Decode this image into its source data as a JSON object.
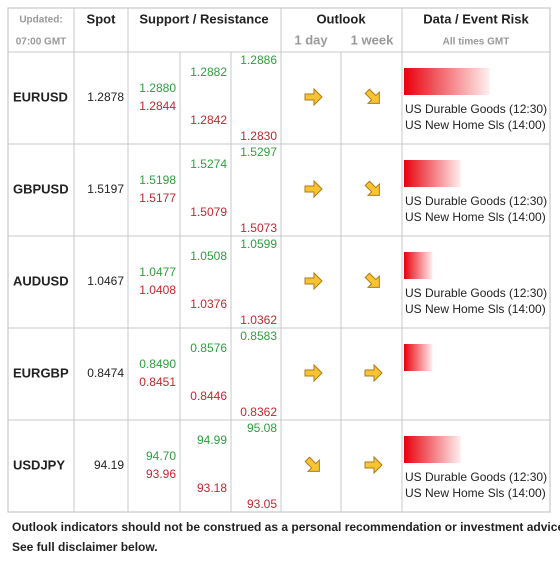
{
  "header": {
    "updated": "Updated:",
    "time": "07:00 GMT",
    "spot": "Spot",
    "levels": "Support / Resistance",
    "outlook": "Outlook",
    "day": "1 day",
    "week": "1 week",
    "risk": "Data / Event Risk",
    "times": "All times GMT"
  },
  "rows": [
    {
      "pair": "EURUSD",
      "spot": "1.2878",
      "resistance": [
        "1.2880",
        "1.2882",
        "1.2886"
      ],
      "support": [
        "1.2844",
        "1.2842",
        "1.2830"
      ],
      "day": "right",
      "week": "down-right",
      "risk_level": 3,
      "events": [
        "US Durable Goods (12:30)",
        "US New Home Sls (14:00)"
      ]
    },
    {
      "pair": "GBPUSD",
      "spot": "1.5197",
      "resistance": [
        "1.5198",
        "1.5274",
        "1.5297"
      ],
      "support": [
        "1.5177",
        "1.5079",
        "1.5073"
      ],
      "day": "right",
      "week": "down-right",
      "risk_level": 2,
      "events": [
        "US Durable Goods (12:30)",
        "US New Home Sls (14:00)"
      ]
    },
    {
      "pair": "AUDUSD",
      "spot": "1.0467",
      "resistance": [
        "1.0477",
        "1.0508",
        "1.0599"
      ],
      "support": [
        "1.0408",
        "1.0376",
        "1.0362"
      ],
      "day": "right",
      "week": "down-right",
      "risk_level": 1,
      "events": [
        "US Durable Goods (12:30)",
        "US New Home Sls (14:00)"
      ]
    },
    {
      "pair": "EURGBP",
      "spot": "0.8474",
      "resistance": [
        "0.8490",
        "0.8576",
        "0.8583"
      ],
      "support": [
        "0.8451",
        "0.8446",
        "0.8362"
      ],
      "day": "right",
      "week": "right",
      "risk_level": 1,
      "events": []
    },
    {
      "pair": "USDJPY",
      "spot": "94.19",
      "resistance": [
        "94.70",
        "94.99",
        "95.08"
      ],
      "support": [
        "93.96",
        "93.18",
        "93.05"
      ],
      "day": "down-right",
      "week": "right",
      "risk_level": 2,
      "events": [
        "US Durable Goods (12:30)",
        "US New Home Sls (14:00)"
      ]
    }
  ],
  "footer": [
    "Outlook indicators should not be construed as a personal recommendation or investment advice.",
    "See full disclaimer below."
  ]
}
